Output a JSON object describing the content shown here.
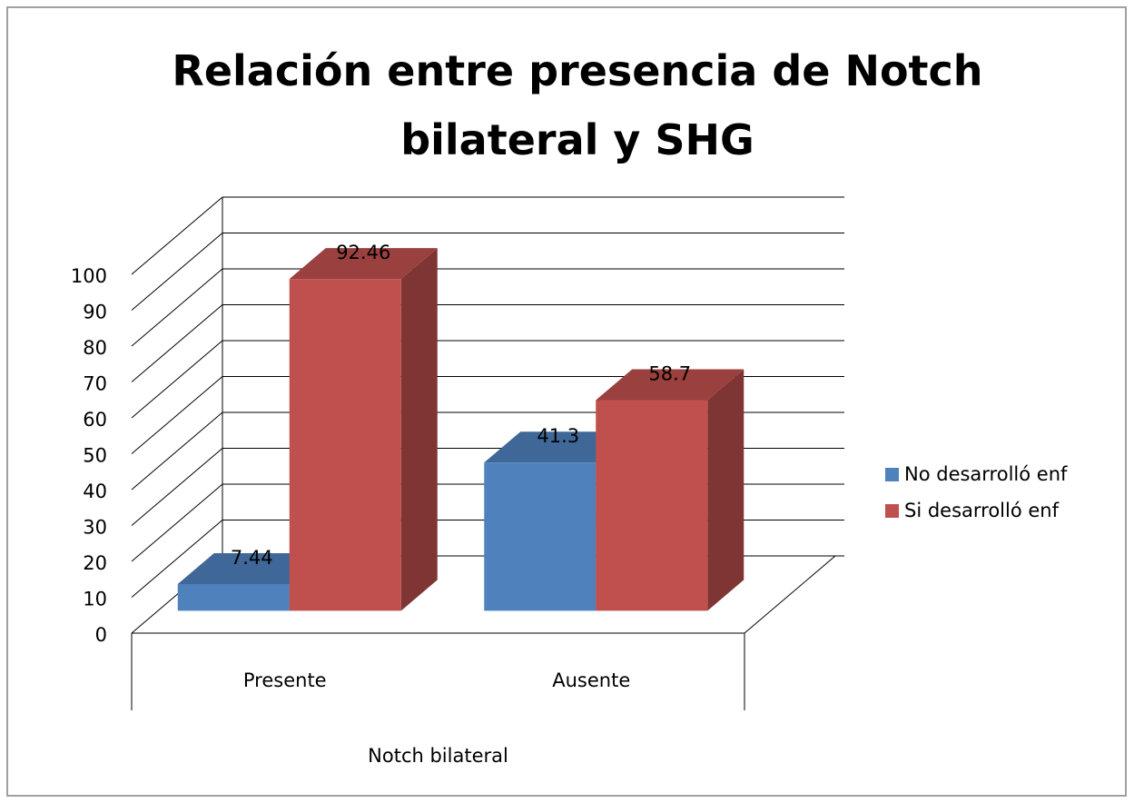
{
  "chart_data": {
    "type": "bar3d",
    "title": "Relación entre presencia de Notch bilateral y SHG",
    "x_label": "Notch bilateral",
    "categories": [
      "Presente",
      "Ausente"
    ],
    "series": [
      {
        "name": "No desarrolló enf",
        "color": "#4f81bd",
        "values": [
          7.44,
          41.3
        ]
      },
      {
        "name": "Si desarrolló enf",
        "color": "#c0504d",
        "values": [
          92.46,
          58.7
        ]
      }
    ],
    "ylim": [
      0,
      100
    ],
    "yticks": [
      0,
      10,
      20,
      30,
      40,
      50,
      60,
      70,
      80,
      90,
      100
    ],
    "grid": true,
    "legend": "right"
  }
}
